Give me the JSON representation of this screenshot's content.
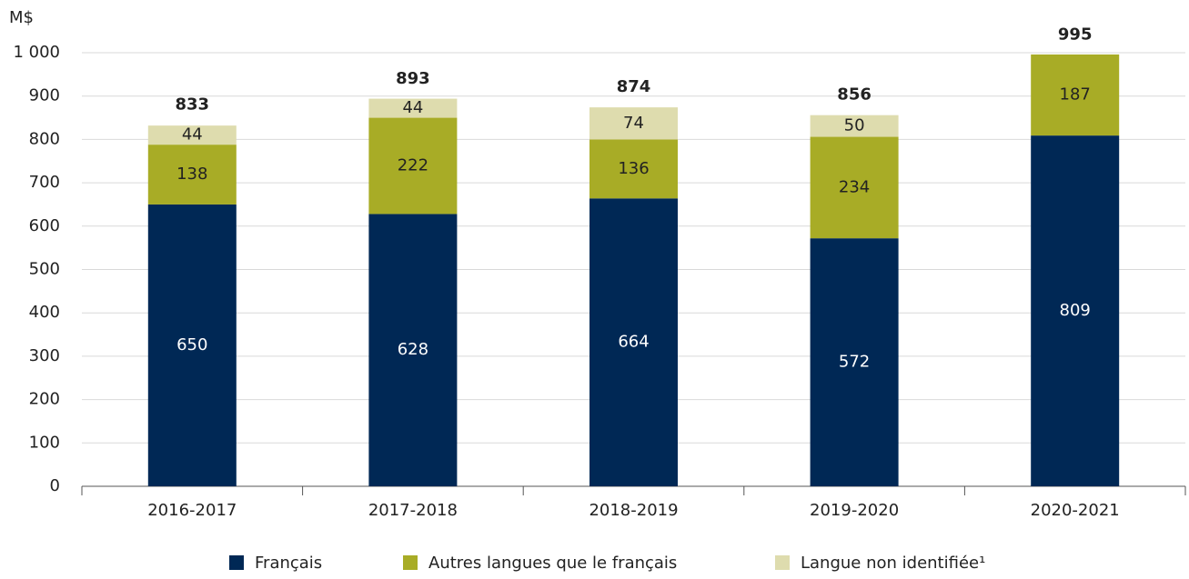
{
  "chart_data": {
    "type": "stacked_bar",
    "ylabel": "M$",
    "categories": [
      "2016-2017",
      "2017-2018",
      "2018-2019",
      "2019-2020",
      "2020-2021"
    ],
    "series": [
      {
        "name": "Français",
        "color": "#002855",
        "values": [
          650,
          628,
          664,
          572,
          809
        ]
      },
      {
        "name": "Autres langues que le français",
        "color": "#a8ac26",
        "values": [
          138,
          222,
          136,
          234,
          187
        ]
      },
      {
        "name": "Langue non identifiée¹",
        "color": "#dedcae",
        "values": [
          44,
          44,
          74,
          50,
          null
        ]
      }
    ],
    "totals": [
      833,
      893,
      874,
      856,
      995
    ],
    "ylim": [
      0,
      1000
    ],
    "yticks": [
      0,
      100,
      200,
      300,
      400,
      500,
      600,
      700,
      800,
      900,
      {
        "value": 1000,
        "label": "1 000"
      }
    ],
    "grid": true
  }
}
